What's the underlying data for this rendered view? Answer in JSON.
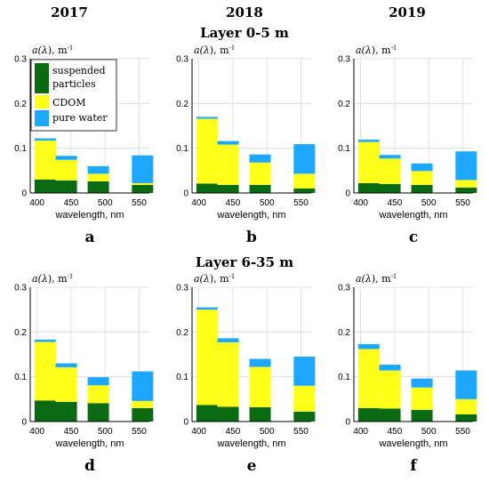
{
  "years": [
    "2017",
    "2018",
    "2019"
  ],
  "layers": [
    "Layer 0-5 m",
    "Layer 6-35 m"
  ],
  "colors": {
    "suspended": "#0a6b12",
    "cdom": "#ffff1a",
    "water": "#1ea7ff",
    "grid": "#d9d9d9",
    "axis": "#000000"
  },
  "legend": [
    {
      "label_lines": [
        "suspended",
        "particles"
      ],
      "color_key": "suspended"
    },
    {
      "label_lines": [
        "CDOM"
      ],
      "color_key": "cdom"
    },
    {
      "label_lines": [
        "pure water"
      ],
      "color_key": "water"
    }
  ],
  "chart_data": [
    {
      "type": "bar",
      "stacked": true,
      "panel_letter": "a",
      "ylabel_prefix": "a(",
      "ylabel_var": "λ",
      "ylabel_suffix": "), m",
      "ylabel_sup": "-1",
      "xlabel": "wavelength, nm",
      "x_ticks": [
        400,
        450,
        500,
        550
      ],
      "y_ticks": [
        0,
        0.1,
        0.2,
        0.3
      ],
      "xlim": [
        390,
        565
      ],
      "ylim": [
        0,
        0.3
      ],
      "legend_position": "top-left",
      "x": [
        412,
        443,
        490,
        555
      ],
      "series": [
        {
          "name": "suspended particles",
          "color_key": "suspended",
          "values": [
            0.03,
            0.028,
            0.026,
            0.018
          ]
        },
        {
          "name": "CDOM",
          "color_key": "cdom",
          "values": [
            0.087,
            0.046,
            0.017,
            0.004
          ]
        },
        {
          "name": "pure water",
          "color_key": "water",
          "values": [
            0.005,
            0.009,
            0.017,
            0.062
          ]
        }
      ]
    },
    {
      "type": "bar",
      "stacked": true,
      "panel_letter": "b",
      "ylabel_prefix": "a(",
      "ylabel_var": "λ",
      "ylabel_suffix": "), m",
      "ylabel_sup": "-1",
      "xlabel": "wavelength, nm",
      "x_ticks": [
        400,
        450,
        500,
        550
      ],
      "y_ticks": [
        0,
        0.1,
        0.2,
        0.3
      ],
      "xlim": [
        390,
        565
      ],
      "ylim": [
        0,
        0.3
      ],
      "x": [
        412,
        443,
        490,
        555
      ],
      "series": [
        {
          "name": "suspended particles",
          "color_key": "suspended",
          "values": [
            0.021,
            0.018,
            0.018,
            0.01
          ]
        },
        {
          "name": "CDOM",
          "color_key": "cdom",
          "values": [
            0.145,
            0.09,
            0.05,
            0.033
          ]
        },
        {
          "name": "pure water",
          "color_key": "water",
          "values": [
            0.004,
            0.008,
            0.018,
            0.066
          ]
        }
      ]
    },
    {
      "type": "bar",
      "stacked": true,
      "panel_letter": "c",
      "ylabel_prefix": "a(",
      "ylabel_var": "λ",
      "ylabel_suffix": "), m",
      "ylabel_sup": "-1",
      "xlabel": "wavelength, nm",
      "x_ticks": [
        400,
        450,
        500,
        550
      ],
      "y_ticks": [
        0,
        0.1,
        0.2,
        0.3
      ],
      "xlim": [
        390,
        565
      ],
      "ylim": [
        0,
        0.3
      ],
      "x": [
        412,
        443,
        490,
        555
      ],
      "series": [
        {
          "name": "suspended particles",
          "color_key": "suspended",
          "values": [
            0.022,
            0.02,
            0.018,
            0.012
          ]
        },
        {
          "name": "CDOM",
          "color_key": "cdom",
          "values": [
            0.092,
            0.057,
            0.031,
            0.017
          ]
        },
        {
          "name": "pure water",
          "color_key": "water",
          "values": [
            0.005,
            0.008,
            0.017,
            0.064
          ]
        }
      ]
    },
    {
      "type": "bar",
      "stacked": true,
      "panel_letter": "d",
      "ylabel_prefix": "a(",
      "ylabel_var": "λ",
      "ylabel_suffix": "), m",
      "ylabel_sup": "-1",
      "xlabel": "wavelength, nm",
      "x_ticks": [
        400,
        450,
        500,
        550
      ],
      "y_ticks": [
        0,
        0.1,
        0.2,
        0.3
      ],
      "xlim": [
        390,
        565
      ],
      "ylim": [
        0,
        0.3
      ],
      "x": [
        412,
        443,
        490,
        555
      ],
      "series": [
        {
          "name": "suspended particles",
          "color_key": "suspended",
          "values": [
            0.047,
            0.044,
            0.041,
            0.03
          ]
        },
        {
          "name": "CDOM",
          "color_key": "cdom",
          "values": [
            0.131,
            0.077,
            0.04,
            0.016
          ]
        },
        {
          "name": "pure water",
          "color_key": "water",
          "values": [
            0.005,
            0.009,
            0.018,
            0.066
          ]
        }
      ]
    },
    {
      "type": "bar",
      "stacked": true,
      "panel_letter": "e",
      "ylabel_prefix": "a(",
      "ylabel_var": "λ",
      "ylabel_suffix": "), m",
      "ylabel_sup": "-1",
      "xlabel": "wavelength, nm",
      "x_ticks": [
        400,
        450,
        500,
        550
      ],
      "y_ticks": [
        0,
        0.1,
        0.2,
        0.3
      ],
      "xlim": [
        390,
        565
      ],
      "ylim": [
        0,
        0.3
      ],
      "x": [
        412,
        443,
        490,
        555
      ],
      "series": [
        {
          "name": "suspended particles",
          "color_key": "suspended",
          "values": [
            0.037,
            0.033,
            0.032,
            0.022
          ]
        },
        {
          "name": "CDOM",
          "color_key": "cdom",
          "values": [
            0.213,
            0.144,
            0.09,
            0.058
          ]
        },
        {
          "name": "pure water",
          "color_key": "water",
          "values": [
            0.005,
            0.009,
            0.018,
            0.065
          ]
        }
      ]
    },
    {
      "type": "bar",
      "stacked": true,
      "panel_letter": "f",
      "ylabel_prefix": "a(",
      "ylabel_var": "λ",
      "ylabel_suffix": "), m",
      "ylabel_sup": "-1",
      "xlabel": "wavelength, nm",
      "x_ticks": [
        400,
        450,
        500,
        550
      ],
      "y_ticks": [
        0,
        0.1,
        0.2,
        0.3
      ],
      "xlim": [
        390,
        565
      ],
      "ylim": [
        0,
        0.3
      ],
      "x": [
        412,
        443,
        490,
        555
      ],
      "series": [
        {
          "name": "suspended particles",
          "color_key": "suspended",
          "values": [
            0.03,
            0.029,
            0.026,
            0.016
          ]
        },
        {
          "name": "CDOM",
          "color_key": "cdom",
          "values": [
            0.132,
            0.085,
            0.05,
            0.034
          ]
        },
        {
          "name": "pure water",
          "color_key": "water",
          "values": [
            0.011,
            0.013,
            0.02,
            0.064
          ]
        }
      ]
    }
  ]
}
